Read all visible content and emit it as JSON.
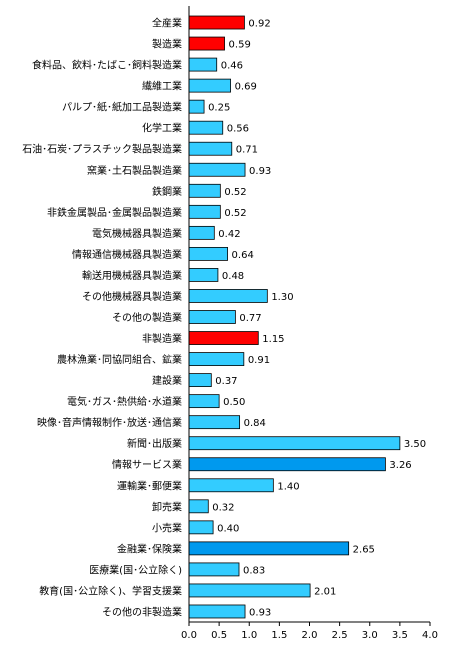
{
  "chart_data": {
    "type": "bar",
    "orientation": "horizontal",
    "categories": [
      "全産業",
      "製造業",
      "食料品、飲料･たばこ･飼料製造業",
      "繊維工業",
      "パルプ･紙･紙加工品製造業",
      "化学工業",
      "石油･石炭･プラスチック製品製造業",
      "窯業･土石製品製造業",
      "鉄鋼業",
      "非鉄金属製品･金属製品製造業",
      "電気機械器具製造業",
      "情報通信機械器具製造業",
      "輸送用機械器具製造業",
      "その他機械器具製造業",
      "その他の製造業",
      "非製造業",
      "農林漁業･同協同組合、鉱業",
      "建設業",
      "電気･ガス･熱供給･水道業",
      "映像･音声情報制作･放送･通信業",
      "新聞･出版業",
      "情報サービス業",
      "運輸業･郵便業",
      "卸売業",
      "小売業",
      "金融業･保険業",
      "医療業(国･公立除く)",
      "教育(国･公立除く)、学習支援業",
      "その他の非製造業"
    ],
    "values": [
      0.92,
      0.59,
      0.46,
      0.69,
      0.25,
      0.56,
      0.71,
      0.93,
      0.52,
      0.52,
      0.42,
      0.64,
      0.48,
      1.3,
      0.77,
      1.15,
      0.91,
      0.37,
      0.5,
      0.84,
      3.5,
      3.26,
      1.4,
      0.32,
      0.4,
      2.65,
      0.83,
      2.01,
      0.93
    ],
    "value_labels": [
      "0.92",
      "0.59",
      "0.46",
      "0.69",
      "0.25",
      "0.56",
      "0.71",
      "0.93",
      "0.52",
      "0.52",
      "0.42",
      "0.64",
      "0.48",
      "1.30",
      "0.77",
      "1.15",
      "0.91",
      "0.37",
      "0.50",
      "0.84",
      "3.50",
      "3.26",
      "1.40",
      "0.32",
      "0.40",
      "2.65",
      "0.83",
      "2.01",
      "0.93"
    ],
    "highlight": [
      "red",
      "red",
      "",
      "",
      "",
      "",
      "",
      "",
      "",
      "",
      "",
      "",
      "",
      "",
      "",
      "red",
      "",
      "",
      "",
      "",
      "",
      "blue",
      "",
      "",
      "",
      "blue",
      "",
      "",
      ""
    ],
    "xlim": [
      0,
      4.0
    ],
    "xticks": [
      "0.0",
      "0.5",
      "1.0",
      "1.5",
      "2.0",
      "2.5",
      "3.0",
      "3.5",
      "4.0"
    ],
    "colors": {
      "default": "#33ccff",
      "red": "#ff0000",
      "blue": "#0099ee"
    },
    "grid": false,
    "legend": "none"
  }
}
